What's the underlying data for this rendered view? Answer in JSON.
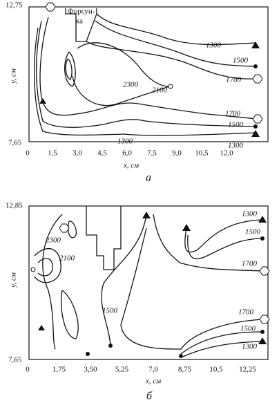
{
  "panels": [
    {
      "y_top": "12,75",
      "y_bottom": "7,65",
      "y_axis_label": "y, см",
      "x_ticks": [
        "0",
        "1,5",
        "3,0",
        "4,5",
        "6,0",
        "7,5",
        "9,0",
        "10,5",
        "12,0"
      ],
      "x_axis_label": "x, см",
      "caption": "а",
      "nozzle_label": [
        "Форсун-",
        "ка"
      ],
      "contour_labels": [
        "1300",
        "1500",
        "1700",
        "2300",
        "2100",
        "1700",
        "1500",
        "1300",
        "1300"
      ]
    },
    {
      "y_top": "12,85",
      "y_bottom": "7,65",
      "y_axis_label": "y, см",
      "x_ticks": [
        "0",
        "1,75",
        "3,50",
        "5,25",
        "7,0",
        "8,75",
        "10,5",
        "12,25"
      ],
      "x_axis_label": "x, см",
      "caption": "б",
      "contour_labels": [
        "1300",
        "1500",
        "1700",
        "2300",
        "2100",
        "1500",
        "1700",
        "1500",
        "1300"
      ]
    }
  ]
}
